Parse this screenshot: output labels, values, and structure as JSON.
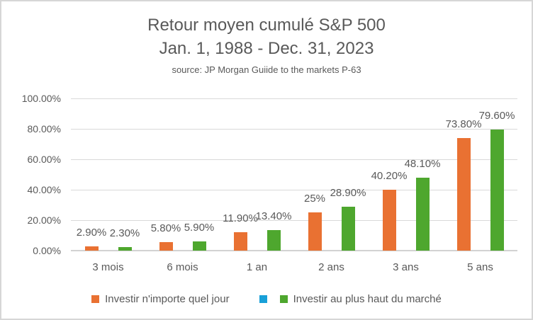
{
  "chart_data": {
    "type": "bar",
    "title": "Retour moyen cumulé S&P 500",
    "subtitle": "Jan. 1, 1988 - Dec. 31, 2023",
    "source": "source: JP Morgan Guiide to the markets P-63",
    "categories": [
      "3 mois",
      "6 mois",
      "1 an",
      "2 ans",
      "3 ans",
      "5 ans"
    ],
    "series": [
      {
        "name": "Investir n'importe quel jour",
        "color": "#E97132",
        "values": [
          2.9,
          5.8,
          11.9,
          25,
          40.2,
          73.8
        ],
        "labels": [
          "2.90%",
          "5.80%",
          "11.90%",
          "25%",
          "40.20%",
          "73.80%"
        ]
      },
      {
        "name": "",
        "color": "#18A0D8",
        "values": [
          null,
          null,
          null,
          null,
          null,
          null
        ],
        "labels": [
          "",
          "",
          "",
          "",
          "",
          ""
        ]
      },
      {
        "name": "Investir au plus haut du marché",
        "color": "#4EA72E",
        "values": [
          2.3,
          5.9,
          13.4,
          28.9,
          48.1,
          79.6
        ],
        "labels": [
          "2.30%",
          "5.90%",
          "13.40%",
          "28.90%",
          "48.10%",
          "79.60%"
        ]
      }
    ],
    "y_axis": {
      "min": 0,
      "max": 100,
      "step": 20,
      "ticks": [
        "0.00%",
        "20.00%",
        "40.00%",
        "60.00%",
        "80.00%",
        "100.00%"
      ]
    },
    "grid": true,
    "legend_position": "bottom",
    "colors": {
      "text": "#595959",
      "gridline": "#D9D9D9",
      "axis_line": "#D2D2D2",
      "frame_border": "#D6D6D6",
      "background": "#FFFFFF"
    }
  }
}
